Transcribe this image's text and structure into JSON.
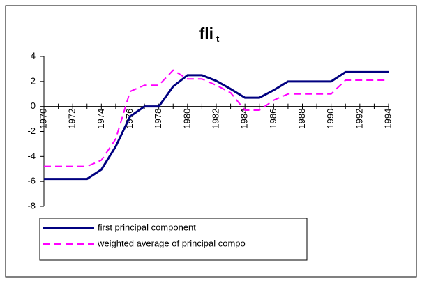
{
  "chart_data": {
    "type": "line",
    "title": "fli",
    "title_subscript": "t",
    "x": [
      1970,
      1971,
      1972,
      1973,
      1974,
      1975,
      1976,
      1977,
      1978,
      1979,
      1980,
      1981,
      1982,
      1983,
      1984,
      1985,
      1986,
      1987,
      1988,
      1989,
      1990,
      1991,
      1992,
      1993,
      1994
    ],
    "series": [
      {
        "name": "first principal component",
        "color": "#000080",
        "dash": false,
        "values": [
          -5.8,
          -5.8,
          -5.8,
          -5.8,
          -5.05,
          -3.2,
          -0.8,
          0,
          0,
          1.6,
          2.5,
          2.5,
          2.05,
          1.4,
          0.7,
          0.7,
          1.3,
          2.0,
          2.0,
          2.0,
          2.0,
          2.75,
          2.75,
          2.75,
          2.75
        ]
      },
      {
        "name": "weighted average of principal compo",
        "color": "#ff00ff",
        "dash": true,
        "values": [
          -4.8,
          -4.8,
          -4.8,
          -4.8,
          -4.3,
          -2.6,
          1.2,
          1.7,
          1.7,
          2.9,
          2.2,
          2.2,
          1.7,
          1.1,
          -0.3,
          -0.3,
          0.5,
          1.0,
          1.0,
          1.0,
          1.0,
          2.1,
          2.1,
          2.1,
          2.1
        ]
      }
    ],
    "xlim": [
      1970,
      1994
    ],
    "xticks": [
      1970,
      1972,
      1974,
      1976,
      1978,
      1980,
      1982,
      1984,
      1986,
      1988,
      1990,
      1992,
      1994
    ],
    "minor_xticks": [
      1971,
      1973,
      1975,
      1977,
      1979,
      1981,
      1983,
      1985,
      1987,
      1989,
      1991,
      1993
    ],
    "ylim": [
      -8,
      4
    ],
    "yticks": [
      -8,
      -6,
      -4,
      -2,
      0,
      2,
      4
    ],
    "legend": "bottom-left"
  }
}
